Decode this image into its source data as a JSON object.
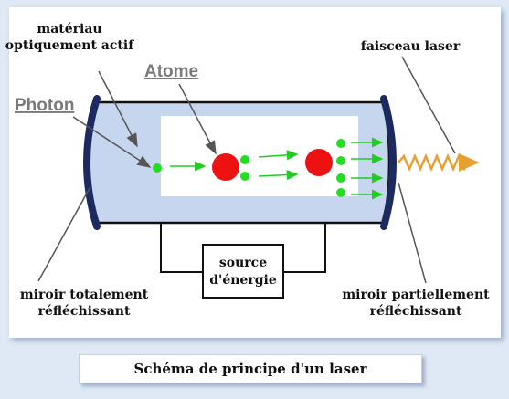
{
  "labels": {
    "active_material_line1": "matériau",
    "active_material_line2": "optiquement actif",
    "atom": "Atome",
    "photon": "Photon",
    "laser_beam": "faisceau laser",
    "energy_source_line1": "source",
    "energy_source_line2": "d'énergie",
    "total_mirror_line1": "miroir totalement",
    "total_mirror_line2": "réfléchissant",
    "partial_mirror_line1": "miroir partiellement",
    "partial_mirror_line2": "réfléchissant"
  },
  "caption": "Schéma de principe d'un laser",
  "colors": {
    "background": "#dfe9f6",
    "tube_fill": "#c7d6ef",
    "mirror": "#1c2a60",
    "atom": "#ee1111",
    "photon": "#22dd22",
    "beam": "#e6a030",
    "pointer_arrow": "#555555"
  }
}
